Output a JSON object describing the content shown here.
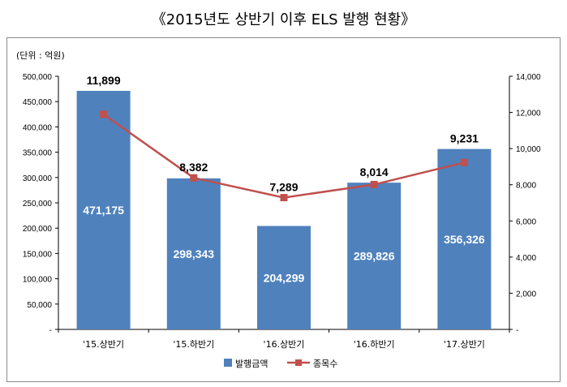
{
  "title": "《2015년도 상반기 이후 ELS 발행 현황》",
  "unit_label": "(단위 : 억원)",
  "chart_data": {
    "type": "bar",
    "categories": [
      "'15.상반기",
      "'15.하반기",
      "'16.상반기",
      "'16.하반기",
      "'17.상반기"
    ],
    "series": [
      {
        "name": "발행금액",
        "type": "bar",
        "axis": "left",
        "color": "#4f81bd",
        "values": [
          471175,
          298343,
          204299,
          289826,
          356326
        ],
        "labels": [
          "471,175",
          "298,343",
          "204,299",
          "289,826",
          "356,326"
        ]
      },
      {
        "name": "종목수",
        "type": "line",
        "axis": "right",
        "color": "#c0504d",
        "values": [
          11899,
          8382,
          7289,
          8014,
          9231
        ],
        "labels": [
          "11,899",
          "8,382",
          "7,289",
          "8,014",
          "9,231"
        ]
      }
    ],
    "ylim": [
      0,
      500000
    ],
    "y2lim": [
      0,
      14000
    ],
    "yticks": [
      "-",
      "50,000",
      "100,000",
      "150,000",
      "200,000",
      "250,000",
      "300,000",
      "350,000",
      "400,000",
      "450,000",
      "500,000"
    ],
    "y2ticks": [
      "-",
      "2,000",
      "4,000",
      "6,000",
      "8,000",
      "10,000",
      "12,000",
      "14,000"
    ],
    "legend_position": "bottom"
  }
}
